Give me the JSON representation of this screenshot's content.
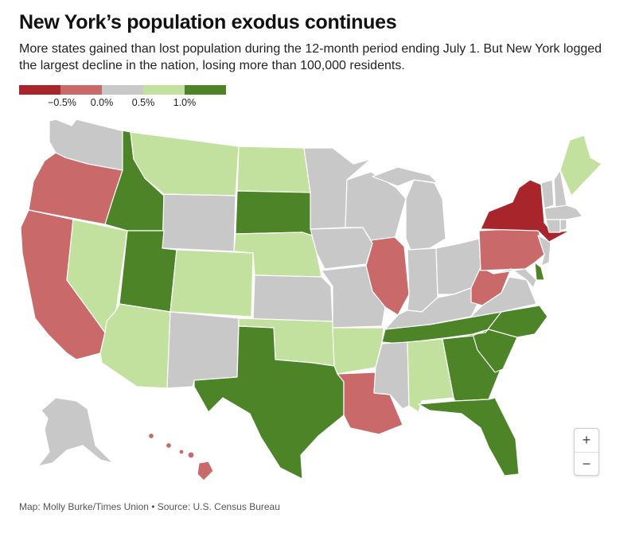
{
  "title": "New York’s population exodus continues",
  "subtitle": "More states gained than lost population during the 12-month period ending July 1. But New York logged the largest decline in the nation, losing more than 100,000 residents.",
  "legend": {
    "bins": [
      {
        "color": "#a8262b"
      },
      {
        "color": "#c96969"
      },
      {
        "color": "#c8c8c8"
      },
      {
        "color": "#c3e19e"
      },
      {
        "color": "#4c8427"
      }
    ],
    "ticks": [
      "−0.5%",
      "0.0%",
      "0.5%",
      "1.0%"
    ]
  },
  "colors": {
    "strong_decline": "#a8262b",
    "decline": "#c96969",
    "flat": "#c8c8c8",
    "gain": "#c3e19e",
    "strong_gain": "#4c8427",
    "border": "#ffffff"
  },
  "states": {
    "strong_decline": [
      "New York"
    ],
    "decline": [
      "Oregon",
      "California",
      "Illinois",
      "Louisiana",
      "Pennsylvania",
      "West Virginia",
      "Hawaii"
    ],
    "flat": [
      "Washington",
      "Alaska",
      "Wyoming",
      "New Mexico",
      "Kansas",
      "Minnesota",
      "Iowa",
      "Missouri",
      "Wisconsin",
      "Michigan",
      "Indiana",
      "Ohio",
      "Kentucky",
      "Mississippi",
      "Virginia",
      "Maryland",
      "New Jersey",
      "Connecticut",
      "Rhode Island",
      "Massachusetts",
      "Vermont",
      "New Hampshire"
    ],
    "gain": [
      "Montana",
      "North Dakota",
      "Nevada",
      "Colorado",
      "Nebraska",
      "Arizona",
      "Oklahoma",
      "Arkansas",
      "Alabama",
      "Maine"
    ],
    "strong_gain": [
      "Idaho",
      "Utah",
      "South Dakota",
      "Texas",
      "Tennessee",
      "Georgia",
      "South Carolina",
      "North Carolina",
      "Florida",
      "Delaware"
    ]
  },
  "zoom": {
    "in_label": "+",
    "out_label": "−"
  },
  "credit": "Map: Molly Burke/Times Union • Source: U.S. Census Bureau"
}
